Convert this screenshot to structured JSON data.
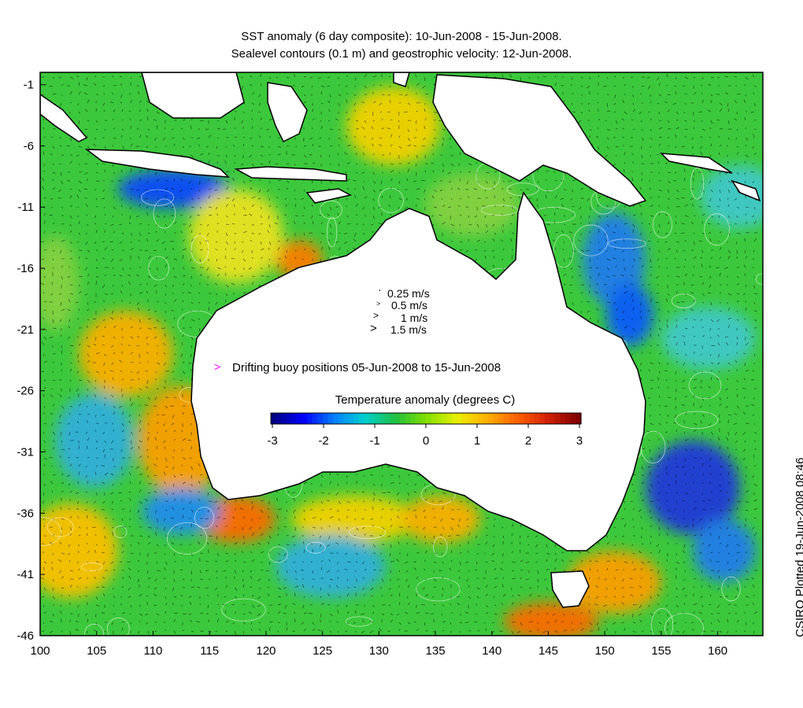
{
  "title": {
    "line1": "SST anomaly (6 day composite): 10-Jun-2008 - 15-Jun-2008.",
    "line2": "Sealevel contours (0.1 m) and geostrophic velocity: 12-Jun-2008."
  },
  "map": {
    "lon_range": [
      100,
      164
    ],
    "lat_range": [
      -46,
      0
    ],
    "x_ticks": [
      "100",
      "105",
      "110",
      "115",
      "120",
      "125",
      "130",
      "135",
      "140",
      "145",
      "150",
      "155",
      "160"
    ],
    "y_ticks": [
      "-1",
      "-6",
      "-11",
      "-16",
      "-21",
      "-26",
      "-31",
      "-36",
      "-41",
      "-46"
    ],
    "land_color": "#ffffff",
    "ocean_base_color": "#3cc83c"
  },
  "velocity_legend": {
    "items": [
      "0.25 m/s",
      "0.5 m/s",
      "1 m/s",
      "1.5 m/s"
    ]
  },
  "buoy_legend": {
    "label": "Drifting buoy positions 05-Jun-2008 to 15-Jun-2008",
    "symbol": ">",
    "color": "#ff00ff"
  },
  "colorbar": {
    "title": "Temperature anomaly (degrees C)",
    "ticks": [
      "-3",
      "-2",
      "-1",
      "0",
      "1",
      "2",
      "3"
    ],
    "colors": [
      "#00007f",
      "#0000ff",
      "#0080ff",
      "#00d0d0",
      "#20c040",
      "#80e000",
      "#e8f000",
      "#ffb000",
      "#ff6000",
      "#d02000",
      "#800000"
    ]
  },
  "credit": "CSIRO Plotted 19-Jun-2008 08:46"
}
